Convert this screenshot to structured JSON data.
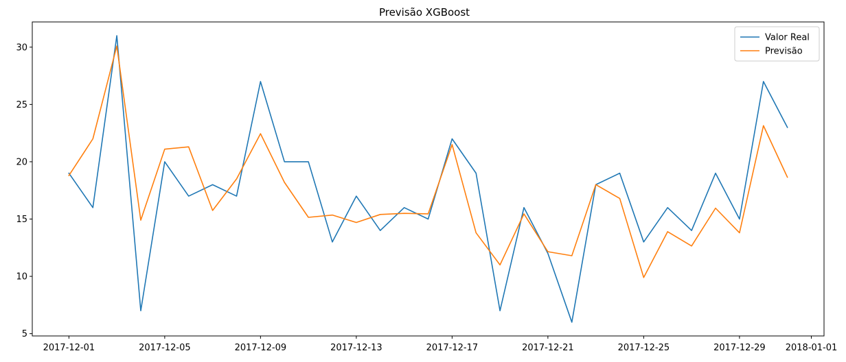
{
  "chart_data": {
    "type": "line",
    "title": "Previsão XGBoost",
    "xlabel": "",
    "ylabel": "",
    "x": [
      "2017-12-01",
      "2017-12-02",
      "2017-12-03",
      "2017-12-04",
      "2017-12-05",
      "2017-12-06",
      "2017-12-07",
      "2017-12-08",
      "2017-12-09",
      "2017-12-10",
      "2017-12-11",
      "2017-12-12",
      "2017-12-13",
      "2017-12-14",
      "2017-12-15",
      "2017-12-16",
      "2017-12-17",
      "2017-12-18",
      "2017-12-19",
      "2017-12-20",
      "2017-12-21",
      "2017-12-22",
      "2017-12-23",
      "2017-12-24",
      "2017-12-25",
      "2017-12-26",
      "2017-12-27",
      "2017-12-28",
      "2017-12-29",
      "2017-12-30",
      "2017-12-31"
    ],
    "series": [
      {
        "name": "Valor Real",
        "color": "#1f77b4",
        "values": [
          19,
          16,
          31,
          7,
          20,
          17,
          18,
          17,
          27,
          20,
          20,
          13,
          17,
          14,
          16,
          15,
          22,
          19,
          7,
          16,
          12,
          6,
          18,
          19,
          13,
          16,
          14,
          19,
          15,
          27,
          23
        ]
      },
      {
        "name": "Previsão",
        "color": "#ff7f0e",
        "values": [
          18.8,
          22,
          30.1,
          14.9,
          21.1,
          21.3,
          15.75,
          18.5,
          22.45,
          18.2,
          15.15,
          15.35,
          14.7,
          15.4,
          15.5,
          15.45,
          21.5,
          13.8,
          11.0,
          15.45,
          12.15,
          11.8,
          18.0,
          16.8,
          9.9,
          13.9,
          12.65,
          15.95,
          13.8,
          23.15,
          18.65
        ]
      }
    ],
    "xticks": [
      "2017-12-01",
      "2017-12-05",
      "2017-12-09",
      "2017-12-13",
      "2017-12-17",
      "2017-12-21",
      "2017-12-25",
      "2017-12-29",
      "2018-01-01"
    ],
    "yticks": [
      5,
      10,
      15,
      20,
      25,
      30
    ],
    "xlim": [
      "2017-11-29.47",
      "2018-01-01.53"
    ],
    "ylim": [
      4.8,
      32.2
    ],
    "grid": false,
    "legend_position": "top-right"
  }
}
